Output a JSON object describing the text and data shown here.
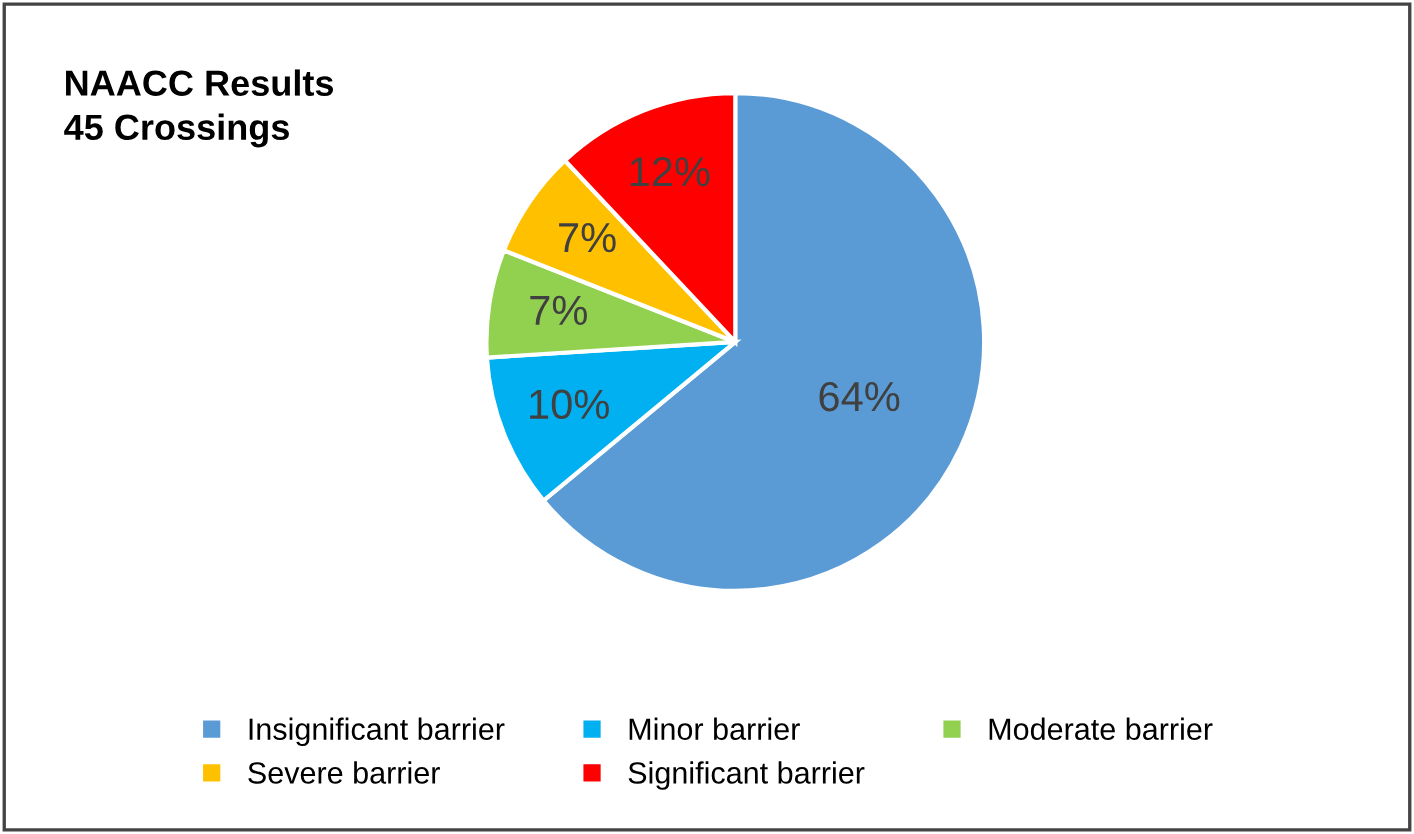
{
  "chart_data": {
    "type": "pie",
    "title": "NAACC Results\n45 Crossings",
    "categories": [
      "Insignificant barrier",
      "Minor barrier",
      "Moderate barrier",
      "Severe barrier",
      "Significant barrier"
    ],
    "values": [
      64,
      10,
      7,
      7,
      12
    ],
    "colors": [
      "#5b9bd5",
      "#00b0f0",
      "#92d050",
      "#ffc000",
      "#ff0000"
    ],
    "value_labels": [
      "64%",
      "10%",
      "7%",
      "7%",
      "12%"
    ],
    "legend": "bottom"
  }
}
